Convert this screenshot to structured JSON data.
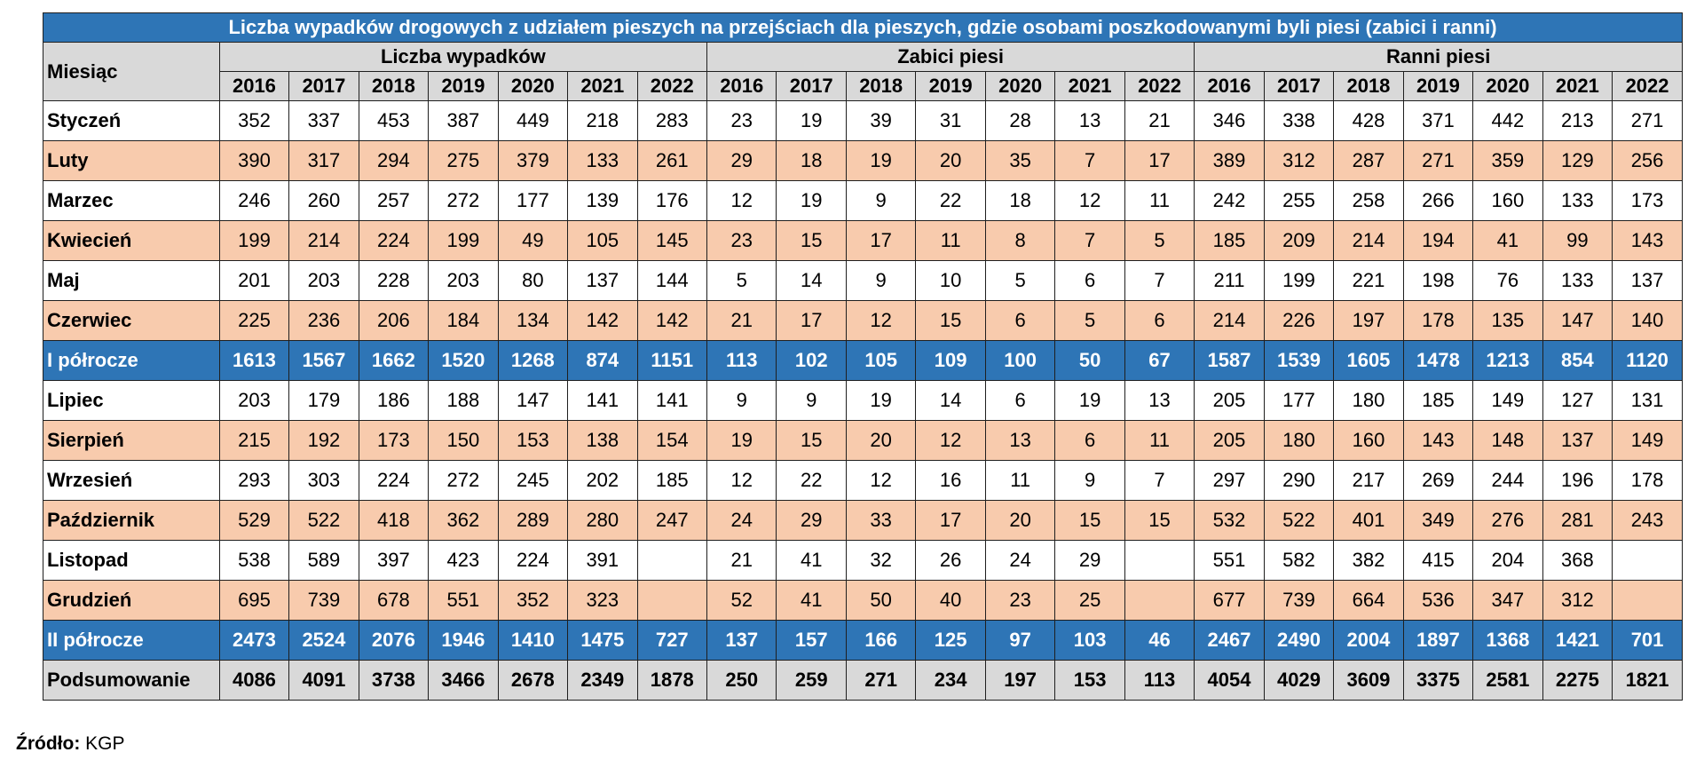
{
  "chart_data": {
    "type": "table",
    "title": "Liczba wypadków drogowych z udziałem pieszych na przejściach dla pieszych, gdzie osobami poszkodowanymi byli piesi (zabici i ranni)",
    "row_header": "Miesiąc",
    "groups": [
      {
        "label": "Liczba wypadków",
        "years": [
          "2016",
          "2017",
          "2018",
          "2019",
          "2020",
          "2021",
          "2022"
        ]
      },
      {
        "label": "Zabici piesi",
        "years": [
          "2016",
          "2017",
          "2018",
          "2019",
          "2020",
          "2021",
          "2022"
        ]
      },
      {
        "label": "Ranni piesi",
        "years": [
          "2016",
          "2017",
          "2018",
          "2019",
          "2020",
          "2021",
          "2022"
        ]
      }
    ],
    "rows": [
      {
        "label": "Styczeń",
        "kind": "odd",
        "values": [
          "352",
          "337",
          "453",
          "387",
          "449",
          "218",
          "283",
          "23",
          "19",
          "39",
          "31",
          "28",
          "13",
          "21",
          "346",
          "338",
          "428",
          "371",
          "442",
          "213",
          "271"
        ]
      },
      {
        "label": "Luty",
        "kind": "even",
        "values": [
          "390",
          "317",
          "294",
          "275",
          "379",
          "133",
          "261",
          "29",
          "18",
          "19",
          "20",
          "35",
          "7",
          "17",
          "389",
          "312",
          "287",
          "271",
          "359",
          "129",
          "256"
        ]
      },
      {
        "label": "Marzec",
        "kind": "odd",
        "values": [
          "246",
          "260",
          "257",
          "272",
          "177",
          "139",
          "176",
          "12",
          "19",
          "9",
          "22",
          "18",
          "12",
          "11",
          "242",
          "255",
          "258",
          "266",
          "160",
          "133",
          "173"
        ]
      },
      {
        "label": "Kwiecień",
        "kind": "even",
        "values": [
          "199",
          "214",
          "224",
          "199",
          "49",
          "105",
          "145",
          "23",
          "15",
          "17",
          "11",
          "8",
          "7",
          "5",
          "185",
          "209",
          "214",
          "194",
          "41",
          "99",
          "143"
        ]
      },
      {
        "label": "Maj",
        "kind": "odd",
        "values": [
          "201",
          "203",
          "228",
          "203",
          "80",
          "137",
          "144",
          "5",
          "14",
          "9",
          "10",
          "5",
          "6",
          "7",
          "211",
          "199",
          "221",
          "198",
          "76",
          "133",
          "137"
        ]
      },
      {
        "label": "Czerwiec",
        "kind": "even",
        "values": [
          "225",
          "236",
          "206",
          "184",
          "134",
          "142",
          "142",
          "21",
          "17",
          "12",
          "15",
          "6",
          "5",
          "6",
          "214",
          "226",
          "197",
          "178",
          "135",
          "147",
          "140"
        ]
      },
      {
        "label": "I półrocze",
        "kind": "half",
        "values": [
          "1613",
          "1567",
          "1662",
          "1520",
          "1268",
          "874",
          "1151",
          "113",
          "102",
          "105",
          "109",
          "100",
          "50",
          "67",
          "1587",
          "1539",
          "1605",
          "1478",
          "1213",
          "854",
          "1120"
        ]
      },
      {
        "label": "Lipiec",
        "kind": "odd",
        "values": [
          "203",
          "179",
          "186",
          "188",
          "147",
          "141",
          "141",
          "9",
          "9",
          "19",
          "14",
          "6",
          "19",
          "13",
          "205",
          "177",
          "180",
          "185",
          "149",
          "127",
          "131"
        ]
      },
      {
        "label": "Sierpień",
        "kind": "even",
        "values": [
          "215",
          "192",
          "173",
          "150",
          "153",
          "138",
          "154",
          "19",
          "15",
          "20",
          "12",
          "13",
          "6",
          "11",
          "205",
          "180",
          "160",
          "143",
          "148",
          "137",
          "149"
        ]
      },
      {
        "label": "Wrzesień",
        "kind": "odd",
        "values": [
          "293",
          "303",
          "224",
          "272",
          "245",
          "202",
          "185",
          "12",
          "22",
          "12",
          "16",
          "11",
          "9",
          "7",
          "297",
          "290",
          "217",
          "269",
          "244",
          "196",
          "178"
        ]
      },
      {
        "label": "Październik",
        "kind": "even",
        "values": [
          "529",
          "522",
          "418",
          "362",
          "289",
          "280",
          "247",
          "24",
          "29",
          "33",
          "17",
          "20",
          "15",
          "15",
          "532",
          "522",
          "401",
          "349",
          "276",
          "281",
          "243"
        ]
      },
      {
        "label": "Listopad",
        "kind": "odd",
        "values": [
          "538",
          "589",
          "397",
          "423",
          "224",
          "391",
          "",
          "21",
          "41",
          "32",
          "26",
          "24",
          "29",
          "",
          "551",
          "582",
          "382",
          "415",
          "204",
          "368",
          ""
        ]
      },
      {
        "label": "Grudzień",
        "kind": "even",
        "values": [
          "695",
          "739",
          "678",
          "551",
          "352",
          "323",
          "",
          "52",
          "41",
          "50",
          "40",
          "23",
          "25",
          "",
          "677",
          "739",
          "664",
          "536",
          "347",
          "312",
          ""
        ]
      },
      {
        "label": "II półrocze",
        "kind": "half",
        "values": [
          "2473",
          "2524",
          "2076",
          "1946",
          "1410",
          "1475",
          "727",
          "137",
          "157",
          "166",
          "125",
          "97",
          "103",
          "46",
          "2467",
          "2490",
          "2004",
          "1897",
          "1368",
          "1421",
          "701"
        ]
      },
      {
        "label": "Podsumowanie",
        "kind": "total",
        "values": [
          "4086",
          "4091",
          "3738",
          "3466",
          "2678",
          "2349",
          "1878",
          "250",
          "259",
          "271",
          "234",
          "197",
          "153",
          "113",
          "4054",
          "4029",
          "3609",
          "3375",
          "2581",
          "2275",
          "1821"
        ]
      }
    ],
    "colors": {
      "header_blue": "#2e75b6",
      "stripe_salmon": "#f8cbad",
      "header_grey": "#d9d9d9"
    }
  },
  "source": {
    "label": "Źródło:",
    "value": "KGP"
  }
}
